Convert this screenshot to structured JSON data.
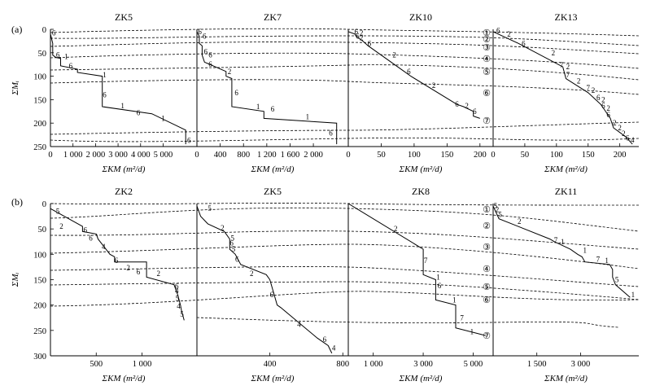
{
  "figure": {
    "panel_labels": [
      "(a)",
      "(b)"
    ],
    "layer_numbers": [
      "①",
      "②",
      "③",
      "④",
      "⑤",
      "⑥",
      "⑦"
    ],
    "colors": {
      "ink": "#000000",
      "background": "#ffffff"
    }
  },
  "chart_data": [
    {
      "id": "a-ZK5",
      "type": "line",
      "title": "ZK5",
      "xlabel": "ΣKM (m²/d)",
      "ylabel": "ΣMᵢ",
      "xlim": [
        0,
        6500
      ],
      "ylim": [
        0,
        250
      ],
      "xticks": [
        "0",
        "1 000",
        "2 000",
        "3 000",
        "4 000",
        "5 000"
      ],
      "yticks": [
        "0",
        "50",
        "100",
        "150",
        "200",
        "250"
      ],
      "series": [
        {
          "x": [
            0,
            0,
            100,
            100,
            250,
            450,
            450,
            1200,
            1200,
            2300,
            2300,
            2300,
            4500,
            6000,
            6000
          ],
          "y": [
            0,
            10,
            30,
            55,
            60,
            62,
            78,
            85,
            92,
            100,
            140,
            165,
            180,
            215,
            245
          ]
        }
      ],
      "labels": [
        {
          "text": "6",
          "x": 150,
          "y": 8
        },
        {
          "text": "6",
          "x": 330,
          "y": 55
        },
        {
          "text": "1",
          "x": 700,
          "y": 58
        },
        {
          "text": "6",
          "x": 900,
          "y": 78
        },
        {
          "text": "1",
          "x": 2400,
          "y": 97
        },
        {
          "text": "6",
          "x": 2400,
          "y": 140
        },
        {
          "text": "1",
          "x": 3200,
          "y": 163
        },
        {
          "text": "6",
          "x": 3900,
          "y": 178
        },
        {
          "text": "1",
          "x": 5000,
          "y": 190
        },
        {
          "text": "6",
          "x": 6150,
          "y": 237
        }
      ]
    },
    {
      "id": "a-ZK7",
      "type": "line",
      "title": "ZK7",
      "xlabel": "ΣKM (m²/d)",
      "ylabel": "",
      "xlim": [
        0,
        2600
      ],
      "ylim": [
        0,
        250
      ],
      "xticks": [
        "0",
        "400",
        "800",
        "1 200",
        "1 600",
        "2 000"
      ],
      "yticks": [],
      "series": [
        {
          "x": [
            0,
            0,
            40,
            40,
            90,
            90,
            130,
            500,
            500,
            600,
            600,
            1150,
            1150,
            2400,
            2400,
            2400
          ],
          "y": [
            0,
            5,
            15,
            30,
            35,
            55,
            70,
            90,
            100,
            105,
            165,
            175,
            190,
            200,
            220,
            245
          ]
        }
      ],
      "labels": [
        {
          "text": "6",
          "x": 50,
          "y": 5
        },
        {
          "text": "6",
          "x": 130,
          "y": 15
        },
        {
          "text": "6",
          "x": 150,
          "y": 48
        },
        {
          "text": "6",
          "x": 230,
          "y": 55
        },
        {
          "text": "6",
          "x": 230,
          "y": 75
        },
        {
          "text": "2",
          "x": 560,
          "y": 90
        },
        {
          "text": "6",
          "x": 680,
          "y": 135
        },
        {
          "text": "1",
          "x": 1050,
          "y": 165
        },
        {
          "text": "6",
          "x": 1300,
          "y": 170
        },
        {
          "text": "1",
          "x": 1900,
          "y": 187
        },
        {
          "text": "6",
          "x": 2300,
          "y": 221
        }
      ]
    },
    {
      "id": "a-ZK10",
      "type": "line",
      "title": "ZK10",
      "xlabel": "ΣKM (m²/d)",
      "ylabel": "",
      "xlim": [
        0,
        220
      ],
      "ylim": [
        0,
        250
      ],
      "xticks": [
        "0",
        "50",
        "100",
        "150",
        "200"
      ],
      "yticks": [],
      "series": [
        {
          "x": [
            0,
            0,
            10,
            12,
            22,
            30,
            85,
            95,
            165,
            175,
            190,
            190,
            200,
            200
          ],
          "y": [
            0,
            5,
            10,
            15,
            25,
            35,
            90,
            100,
            160,
            165,
            175,
            185,
            190,
            190
          ]
        }
      ],
      "labels": [
        {
          "text": "6",
          "x": 12,
          "y": 5
        },
        {
          "text": "2",
          "x": 20,
          "y": 8
        },
        {
          "text": "6",
          "x": 14,
          "y": 15
        },
        {
          "text": "2",
          "x": 20,
          "y": 18
        },
        {
          "text": "6",
          "x": 32,
          "y": 30
        },
        {
          "text": "2",
          "x": 70,
          "y": 55
        },
        {
          "text": "6",
          "x": 92,
          "y": 90
        },
        {
          "text": "2",
          "x": 130,
          "y": 120
        },
        {
          "text": "6",
          "x": 165,
          "y": 160
        },
        {
          "text": "2",
          "x": 180,
          "y": 163
        },
        {
          "text": "6",
          "x": 192,
          "y": 175
        }
      ]
    },
    {
      "id": "a-ZK13",
      "type": "line",
      "title": "ZK13",
      "xlabel": "ΣKM (m²/d)",
      "ylabel": "",
      "xlim": [
        0,
        230
      ],
      "ylim": [
        0,
        250
      ],
      "xticks": [
        "0",
        "50",
        "100",
        "150",
        "200"
      ],
      "yticks": [],
      "series": [
        {
          "x": [
            0,
            0,
            40,
            110,
            115,
            150,
            170,
            175,
            185,
            190,
            200,
            210,
            220
          ],
          "y": [
            0,
            5,
            30,
            80,
            105,
            135,
            160,
            170,
            190,
            210,
            220,
            230,
            245
          ]
        }
      ],
      "labels": [
        {
          "text": "6",
          "x": 8,
          "y": 3
        },
        {
          "text": "2",
          "x": 25,
          "y": 10
        },
        {
          "text": "6",
          "x": 48,
          "y": 30
        },
        {
          "text": "2",
          "x": 95,
          "y": 50
        },
        {
          "text": "7",
          "x": 108,
          "y": 76
        },
        {
          "text": "2",
          "x": 118,
          "y": 80
        },
        {
          "text": "7",
          "x": 118,
          "y": 97
        },
        {
          "text": "2",
          "x": 135,
          "y": 110
        },
        {
          "text": "7",
          "x": 150,
          "y": 125
        },
        {
          "text": "2",
          "x": 158,
          "y": 130
        },
        {
          "text": "6",
          "x": 166,
          "y": 146
        },
        {
          "text": "2",
          "x": 174,
          "y": 150
        },
        {
          "text": "6",
          "x": 174,
          "y": 163
        },
        {
          "text": "2",
          "x": 182,
          "y": 168
        },
        {
          "text": "6",
          "x": 182,
          "y": 182
        },
        {
          "text": "2",
          "x": 192,
          "y": 200
        },
        {
          "text": "2",
          "x": 200,
          "y": 210
        },
        {
          "text": "2",
          "x": 206,
          "y": 222
        },
        {
          "text": "6",
          "x": 212,
          "y": 232
        },
        {
          "text": "4",
          "x": 220,
          "y": 236
        }
      ]
    },
    {
      "id": "b-ZK2",
      "type": "line",
      "title": "ZK2",
      "xlabel": "ΣKM (m²/d)",
      "ylabel": "ΣMᵢ",
      "xlim": [
        0,
        1600
      ],
      "ylim": [
        0,
        300
      ],
      "xticks": [
        "500",
        "1 000"
      ],
      "yticks": [
        "0",
        "50",
        "100",
        "150",
        "200",
        "250",
        "300"
      ],
      "series": [
        {
          "x": [
            0,
            0,
            350,
            350,
            500,
            520,
            650,
            700,
            700,
            1050,
            1050,
            1350,
            1390,
            1420,
            1430,
            1460
          ],
          "y": [
            0,
            10,
            45,
            55,
            60,
            70,
            100,
            105,
            115,
            115,
            145,
            160,
            180,
            200,
            210,
            230
          ]
        }
      ],
      "labels": [
        {
          "text": "5",
          "x": 80,
          "y": 15
        },
        {
          "text": "2",
          "x": 120,
          "y": 45
        },
        {
          "text": "6",
          "x": 380,
          "y": 52
        },
        {
          "text": "6",
          "x": 440,
          "y": 68
        },
        {
          "text": "4",
          "x": 580,
          "y": 85
        },
        {
          "text": "6",
          "x": 720,
          "y": 112
        },
        {
          "text": "2",
          "x": 850,
          "y": 127
        },
        {
          "text": "6",
          "x": 960,
          "y": 135
        },
        {
          "text": "2",
          "x": 1180,
          "y": 138
        },
        {
          "text": "6",
          "x": 1380,
          "y": 163
        },
        {
          "text": "4",
          "x": 1380,
          "y": 172
        },
        {
          "text": "5",
          "x": 1385,
          "y": 187
        },
        {
          "text": "4",
          "x": 1400,
          "y": 202
        },
        {
          "text": "5",
          "x": 1435,
          "y": 218
        }
      ]
    },
    {
      "id": "b-ZK5",
      "type": "line",
      "title": "ZK5",
      "xlabel": "ΣKM (m²/d)",
      "ylabel": "",
      "xlim": [
        0,
        830
      ],
      "ylim": [
        0,
        300
      ],
      "xticks": [
        "400",
        "800"
      ],
      "yticks": [],
      "series": [
        {
          "x": [
            0,
            0,
            20,
            60,
            150,
            160,
            180,
            180,
            210,
            240,
            380,
            400,
            440,
            460,
            660,
            720,
            740
          ],
          "y": [
            0,
            5,
            25,
            40,
            55,
            60,
            70,
            90,
            100,
            120,
            140,
            150,
            200,
            205,
            265,
            280,
            295
          ]
        }
      ],
      "labels": [
        {
          "text": "5",
          "x": 70,
          "y": 10
        },
        {
          "text": "2",
          "x": 140,
          "y": 48
        },
        {
          "text": "5",
          "x": 195,
          "y": 68
        },
        {
          "text": "6",
          "x": 190,
          "y": 78
        },
        {
          "text": "5",
          "x": 200,
          "y": 90
        },
        {
          "text": "6",
          "x": 220,
          "y": 110
        },
        {
          "text": "2",
          "x": 300,
          "y": 138
        },
        {
          "text": "6",
          "x": 410,
          "y": 180
        },
        {
          "text": "4",
          "x": 560,
          "y": 238
        },
        {
          "text": "6",
          "x": 700,
          "y": 268
        },
        {
          "text": "4",
          "x": 750,
          "y": 285
        }
      ]
    },
    {
      "id": "b-ZK8",
      "type": "line",
      "title": "ZK8",
      "xlabel": "ΣKM (m²/d)",
      "ylabel": "",
      "xlim": [
        0,
        5800
      ],
      "ylim": [
        0,
        300
      ],
      "xticks": [
        "1 000",
        "3 000",
        "5 000"
      ],
      "yticks": [],
      "series": [
        {
          "x": [
            0,
            3000,
            3000,
            3500,
            3500,
            4300,
            4300,
            5500
          ],
          "y": [
            0,
            90,
            140,
            150,
            190,
            200,
            245,
            260
          ]
        }
      ],
      "labels": [
        {
          "text": "2",
          "x": 1900,
          "y": 50
        },
        {
          "text": "7",
          "x": 3100,
          "y": 112
        },
        {
          "text": "1",
          "x": 3600,
          "y": 145
        },
        {
          "text": "6",
          "x": 3650,
          "y": 162
        },
        {
          "text": "1",
          "x": 4250,
          "y": 190
        },
        {
          "text": "7",
          "x": 4550,
          "y": 225
        },
        {
          "text": "1",
          "x": 4950,
          "y": 253
        }
      ]
    },
    {
      "id": "b-ZK11",
      "type": "line",
      "title": "ZK11",
      "xlabel": "ΣKM (m²/d)",
      "ylabel": "",
      "xlim": [
        0,
        5000
      ],
      "ylim": [
        0,
        300
      ],
      "xticks": [
        "1 500",
        "3 000"
      ],
      "yticks": [],
      "series": [
        {
          "x": [
            0,
            0,
            200,
            1950,
            2100,
            2650,
            2900,
            3050,
            3150,
            4000,
            4100,
            4100,
            4200,
            4700
          ],
          "y": [
            0,
            5,
            30,
            70,
            75,
            90,
            100,
            105,
            115,
            120,
            130,
            145,
            160,
            185
          ]
        }
      ],
      "labels": [
        {
          "text": "5",
          "x": 80,
          "y": 5
        },
        {
          "text": "2",
          "x": 140,
          "y": 12
        },
        {
          "text": "5",
          "x": 240,
          "y": 22
        },
        {
          "text": "2",
          "x": 900,
          "y": 35
        },
        {
          "text": "7",
          "x": 2150,
          "y": 72
        },
        {
          "text": "1",
          "x": 2380,
          "y": 75
        },
        {
          "text": "1",
          "x": 3150,
          "y": 92
        },
        {
          "text": "7",
          "x": 3600,
          "y": 110
        },
        {
          "text": "1",
          "x": 3900,
          "y": 112
        },
        {
          "text": "5",
          "x": 4250,
          "y": 150
        },
        {
          "text": "1",
          "x": 4800,
          "y": 180
        }
      ]
    }
  ]
}
